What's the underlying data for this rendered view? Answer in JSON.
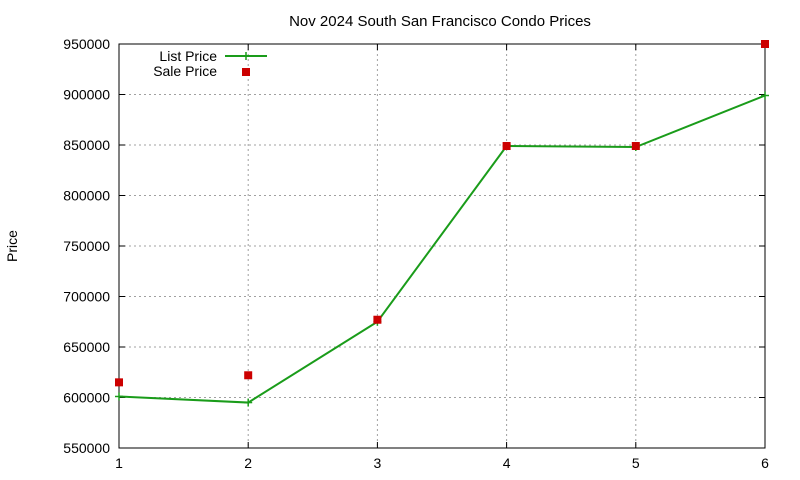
{
  "chart_data": {
    "type": "line",
    "title": "Nov 2024 South San Francisco Condo Prices",
    "ylabel": "Price",
    "xlabel": "",
    "xlim": [
      1,
      6
    ],
    "ylim": [
      550000,
      950000
    ],
    "x_ticks": [
      "1",
      "2",
      "3",
      "4",
      "5",
      "6"
    ],
    "y_ticks": [
      "550000",
      "600000",
      "650000",
      "700000",
      "750000",
      "800000",
      "850000",
      "900000",
      "950000"
    ],
    "grid": true,
    "legend_position": "top-left",
    "series": [
      {
        "name": "List Price",
        "style": "line-with-plus-markers",
        "color": "#1a9c1a",
        "x": [
          1,
          2,
          3,
          4,
          5,
          6
        ],
        "values": [
          601000,
          595000,
          675000,
          849000,
          848000,
          899000
        ]
      },
      {
        "name": "Sale Price",
        "style": "square-markers",
        "color": "#cc0000",
        "x": [
          1,
          2,
          3,
          4,
          5,
          6
        ],
        "values": [
          615000,
          622000,
          677000,
          849000,
          849000,
          950000
        ]
      }
    ]
  }
}
